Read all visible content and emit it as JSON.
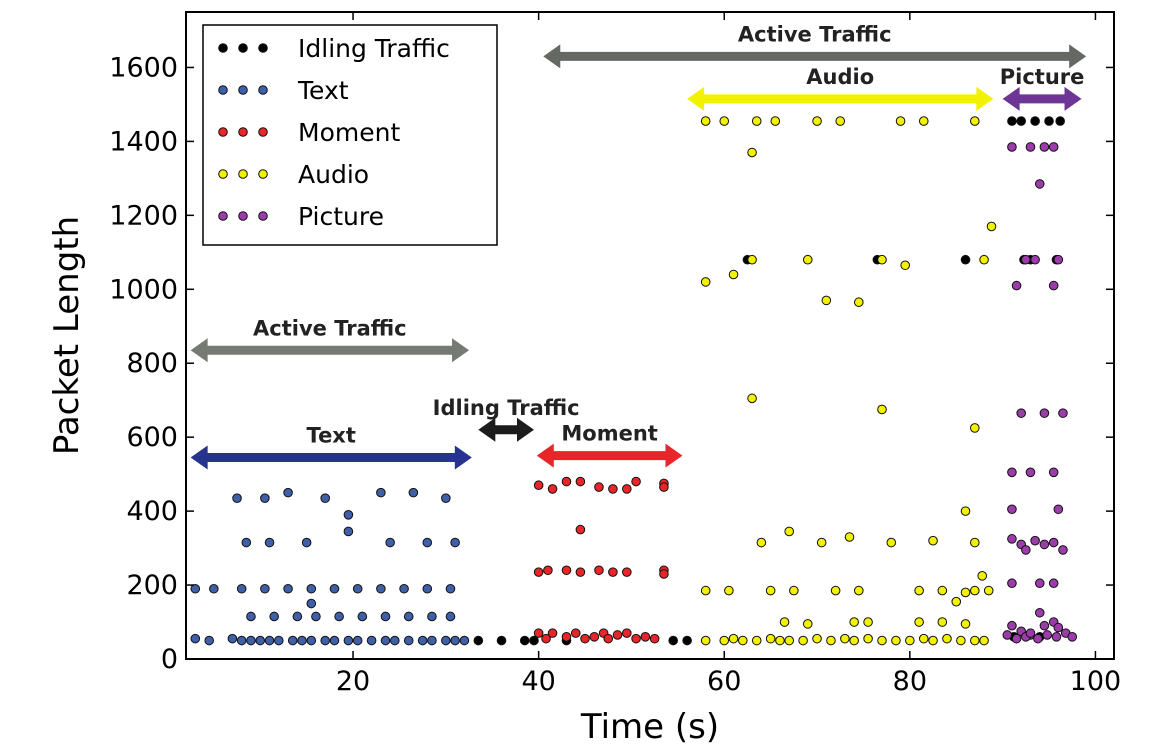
{
  "chart_data": {
    "type": "scatter",
    "title": "",
    "xlabel": "Time (s)",
    "ylabel": "Packet Length",
    "xlim": [
      2,
      102
    ],
    "ylim": [
      0,
      1750
    ],
    "xticks": [
      20,
      40,
      60,
      80,
      100
    ],
    "yticks": [
      0,
      200,
      400,
      600,
      800,
      1000,
      1200,
      1400,
      1600
    ],
    "grid": false,
    "legend": {
      "placement": "top-left"
    },
    "series": [
      {
        "name": "Idling Traffic",
        "color": "#000000",
        "points": [
          [
            33.5,
            50
          ],
          [
            36,
            50
          ],
          [
            38.5,
            50
          ],
          [
            39.5,
            50
          ],
          [
            43,
            50
          ],
          [
            54.5,
            50
          ],
          [
            56,
            50
          ],
          [
            91,
            1455
          ],
          [
            92,
            1455
          ],
          [
            93.5,
            1455
          ],
          [
            95,
            1455
          ],
          [
            96.2,
            1455
          ],
          [
            92.3,
            1080
          ],
          [
            93,
            1080
          ],
          [
            95.8,
            1080
          ],
          [
            76.5,
            1080
          ],
          [
            86,
            1080
          ],
          [
            62.5,
            1080
          ],
          [
            91.2,
            60
          ],
          [
            94,
            60
          ]
        ]
      },
      {
        "name": "Text",
        "color": "#3f5fa8",
        "points": [
          [
            3,
            190
          ],
          [
            5,
            190
          ],
          [
            8,
            190
          ],
          [
            10.5,
            190
          ],
          [
            13,
            190
          ],
          [
            15.5,
            190
          ],
          [
            18,
            190
          ],
          [
            20.5,
            190
          ],
          [
            23,
            190
          ],
          [
            25.5,
            190
          ],
          [
            28,
            190
          ],
          [
            30.5,
            190
          ],
          [
            3,
            55
          ],
          [
            4.5,
            50
          ],
          [
            7,
            55
          ],
          [
            8,
            50
          ],
          [
            9,
            50
          ],
          [
            10,
            50
          ],
          [
            11,
            50
          ],
          [
            12,
            50
          ],
          [
            13.5,
            50
          ],
          [
            14.5,
            50
          ],
          [
            15.5,
            50
          ],
          [
            17,
            50
          ],
          [
            18,
            50
          ],
          [
            19.5,
            50
          ],
          [
            20.5,
            50
          ],
          [
            22,
            50
          ],
          [
            23.5,
            50
          ],
          [
            24.5,
            50
          ],
          [
            26,
            50
          ],
          [
            27.5,
            50
          ],
          [
            28.5,
            50
          ],
          [
            30,
            50
          ],
          [
            31,
            50
          ],
          [
            32,
            50
          ],
          [
            7.5,
            435
          ],
          [
            10.5,
            435
          ],
          [
            13,
            450
          ],
          [
            17,
            435
          ],
          [
            23,
            450
          ],
          [
            26.5,
            450
          ],
          [
            30,
            435
          ],
          [
            19.5,
            390
          ],
          [
            8.5,
            315
          ],
          [
            11,
            315
          ],
          [
            15,
            315
          ],
          [
            19.5,
            345
          ],
          [
            24,
            315
          ],
          [
            28,
            315
          ],
          [
            31,
            315
          ],
          [
            9,
            115
          ],
          [
            11.5,
            115
          ],
          [
            14,
            115
          ],
          [
            16,
            115
          ],
          [
            18.5,
            115
          ],
          [
            21,
            115
          ],
          [
            23.5,
            115
          ],
          [
            26,
            115
          ],
          [
            28.5,
            115
          ],
          [
            30.5,
            115
          ],
          [
            15.5,
            150
          ]
        ]
      },
      {
        "name": "Moment",
        "color": "#e8262a",
        "points": [
          [
            40,
            470
          ],
          [
            41.5,
            460
          ],
          [
            43,
            480
          ],
          [
            44.5,
            480
          ],
          [
            46.5,
            465
          ],
          [
            48,
            460
          ],
          [
            49.5,
            460
          ],
          [
            50.5,
            480
          ],
          [
            53.5,
            475
          ],
          [
            53.5,
            465
          ],
          [
            40,
            235
          ],
          [
            41,
            240
          ],
          [
            43,
            240
          ],
          [
            44.5,
            235
          ],
          [
            46.5,
            240
          ],
          [
            48,
            235
          ],
          [
            49.5,
            235
          ],
          [
            53.5,
            240
          ],
          [
            53.5,
            230
          ],
          [
            44.5,
            350
          ],
          [
            40,
            70
          ],
          [
            40.8,
            55
          ],
          [
            41.5,
            70
          ],
          [
            43,
            60
          ],
          [
            44,
            70
          ],
          [
            45,
            55
          ],
          [
            46,
            60
          ],
          [
            47,
            70
          ],
          [
            47.5,
            55
          ],
          [
            48.5,
            65
          ],
          [
            49.5,
            70
          ],
          [
            50.5,
            55
          ],
          [
            51.5,
            60
          ],
          [
            52.5,
            55
          ]
        ]
      },
      {
        "name": "Audio",
        "color": "#f2f200",
        "points": [
          [
            58,
            1455
          ],
          [
            60,
            1455
          ],
          [
            63.5,
            1455
          ],
          [
            65.5,
            1455
          ],
          [
            70,
            1455
          ],
          [
            72.5,
            1455
          ],
          [
            79,
            1455
          ],
          [
            81.5,
            1455
          ],
          [
            87,
            1455
          ],
          [
            63,
            1370
          ],
          [
            58,
            1020
          ],
          [
            61,
            1040
          ],
          [
            63,
            1080
          ],
          [
            69,
            1080
          ],
          [
            77,
            1080
          ],
          [
            79.5,
            1065
          ],
          [
            88,
            1080
          ],
          [
            88.8,
            1170
          ],
          [
            71,
            970
          ],
          [
            74.5,
            965
          ],
          [
            63,
            705
          ],
          [
            77,
            675
          ],
          [
            87,
            625
          ],
          [
            64,
            315
          ],
          [
            67,
            345
          ],
          [
            70.5,
            315
          ],
          [
            73.5,
            330
          ],
          [
            78,
            315
          ],
          [
            82.5,
            320
          ],
          [
            86,
            400
          ],
          [
            87,
            315
          ],
          [
            87.8,
            225
          ],
          [
            58,
            185
          ],
          [
            60.5,
            185
          ],
          [
            65,
            185
          ],
          [
            67.5,
            185
          ],
          [
            72,
            185
          ],
          [
            74.5,
            185
          ],
          [
            81,
            185
          ],
          [
            83.5,
            185
          ],
          [
            86,
            180
          ],
          [
            87,
            185
          ],
          [
            88.5,
            185
          ],
          [
            85,
            155
          ],
          [
            66.5,
            100
          ],
          [
            69,
            95
          ],
          [
            74,
            100
          ],
          [
            75.5,
            100
          ],
          [
            81,
            100
          ],
          [
            83.5,
            100
          ],
          [
            86,
            95
          ],
          [
            58,
            50
          ],
          [
            60,
            50
          ],
          [
            61,
            55
          ],
          [
            62,
            50
          ],
          [
            63.5,
            50
          ],
          [
            65,
            55
          ],
          [
            66,
            50
          ],
          [
            67,
            50
          ],
          [
            68.5,
            50
          ],
          [
            70,
            55
          ],
          [
            71.5,
            50
          ],
          [
            73,
            55
          ],
          [
            74,
            50
          ],
          [
            75.5,
            55
          ],
          [
            77,
            50
          ],
          [
            78.5,
            50
          ],
          [
            80,
            50
          ],
          [
            81.5,
            55
          ],
          [
            82.5,
            50
          ],
          [
            84,
            55
          ],
          [
            85.5,
            50
          ],
          [
            87,
            50
          ],
          [
            88,
            50
          ]
        ]
      },
      {
        "name": "Picture",
        "color": "#9c3cab",
        "points": [
          [
            91,
            1385
          ],
          [
            93,
            1385
          ],
          [
            94.5,
            1385
          ],
          [
            95.5,
            1385
          ],
          [
            94,
            1285
          ],
          [
            91.5,
            1010
          ],
          [
            92.5,
            1080
          ],
          [
            93.5,
            1080
          ],
          [
            96,
            1080
          ],
          [
            95.5,
            1010
          ],
          [
            92,
            665
          ],
          [
            94.5,
            665
          ],
          [
            96.5,
            665
          ],
          [
            91,
            505
          ],
          [
            93,
            505
          ],
          [
            95.5,
            505
          ],
          [
            91,
            405
          ],
          [
            96,
            405
          ],
          [
            91,
            325
          ],
          [
            92,
            310
          ],
          [
            92.5,
            295
          ],
          [
            93.5,
            320
          ],
          [
            94.5,
            310
          ],
          [
            95.5,
            315
          ],
          [
            96.5,
            295
          ],
          [
            91,
            205
          ],
          [
            94,
            205
          ],
          [
            95.5,
            205
          ],
          [
            91,
            90
          ],
          [
            92,
            75
          ],
          [
            93,
            65
          ],
          [
            94,
            125
          ],
          [
            94.5,
            90
          ],
          [
            95.5,
            100
          ],
          [
            96,
            85
          ],
          [
            90.5,
            65
          ],
          [
            91.5,
            55
          ],
          [
            92.5,
            60
          ],
          [
            93,
            70
          ],
          [
            93.8,
            55
          ],
          [
            94.8,
            65
          ],
          [
            95.8,
            60
          ],
          [
            96.8,
            70
          ],
          [
            97.5,
            60
          ]
        ]
      }
    ],
    "annotations": [
      {
        "label": "Active Traffic",
        "x_start": 2.5,
        "x_end": 32.5,
        "y": 835,
        "color": "#777a72"
      },
      {
        "label": "Text",
        "x_start": 2.5,
        "x_end": 32.8,
        "y": 545,
        "color": "#26338f"
      },
      {
        "label": "Idling Traffic",
        "x_start": 33.5,
        "x_end": 39.5,
        "y": 620,
        "color": "#1c1c1c"
      },
      {
        "label": "Moment",
        "x_start": 39.8,
        "x_end": 55.5,
        "y": 550,
        "color": "#e8262a"
      },
      {
        "label": "Active Traffic",
        "x_start": 40.5,
        "x_end": 99,
        "y": 1630,
        "color": "#666864"
      },
      {
        "label": "Audio",
        "x_start": 56,
        "x_end": 89,
        "y": 1515,
        "color": "#f2f200"
      },
      {
        "label": "Picture",
        "x_start": 90,
        "x_end": 98.5,
        "y": 1515,
        "color": "#6c3596"
      }
    ]
  }
}
